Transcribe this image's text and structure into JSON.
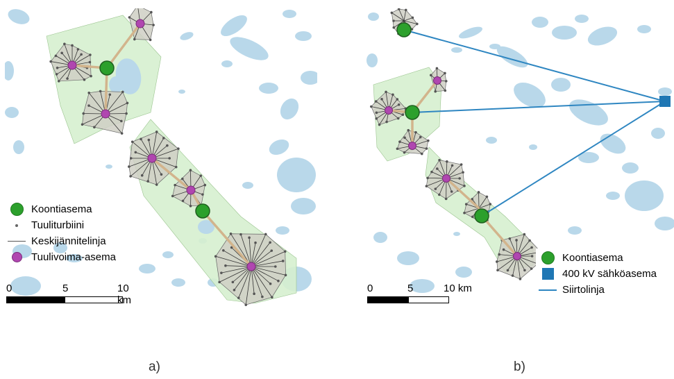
{
  "panels": [
    {
      "id": "a",
      "label": "a)",
      "legend": [
        {
          "label": "Koontiasema",
          "icon": "green-circle-icon"
        },
        {
          "label": "Tuuliturbiini",
          "icon": "grey-dot-icon"
        },
        {
          "label": "Keskijännitelinja",
          "icon": "grey-line-icon"
        },
        {
          "label": "Tuulivoima-asema",
          "icon": "purple-circle-icon"
        }
      ],
      "scale": {
        "labels": [
          "0",
          "5",
          "10 km"
        ]
      }
    },
    {
      "id": "b",
      "label": "b)",
      "legend": [
        {
          "label": "Koontiasema",
          "icon": "green-circle-icon"
        },
        {
          "label": "400 kV sähköasema",
          "icon": "blue-square-icon"
        },
        {
          "label": "Siirtolinja",
          "icon": "blue-line-icon"
        }
      ],
      "scale": {
        "labels": [
          "0",
          "5",
          "10 km"
        ]
      }
    }
  ],
  "colors": {
    "water": "#b9d8ea",
    "park_zone": "#d6f0cf",
    "turbine_zone": "#cfcfc4",
    "collector_line": "#d2b48c",
    "substation": "#2ca02c",
    "wind_station": "#b046b0",
    "grid_node": "#1f77b4",
    "transmission_line": "#2e86c1"
  }
}
